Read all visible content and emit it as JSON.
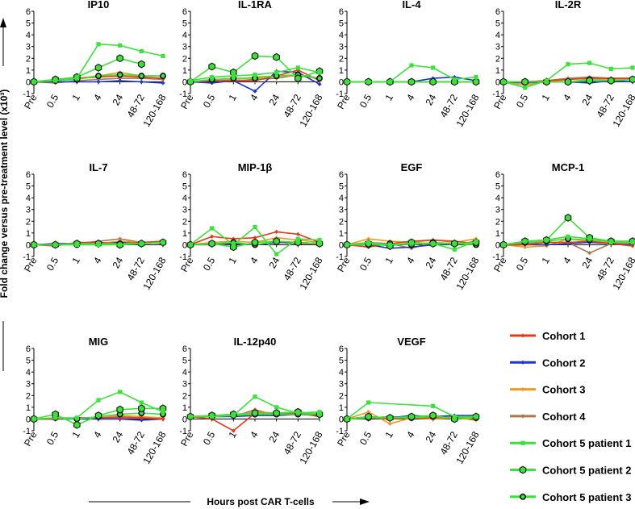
{
  "y_axis_label": "Fold change versus pre-treatment level (x10³)",
  "x_axis_label": "Hours post CAR T-cells",
  "x_categories": [
    "Pre",
    "0.5",
    "1",
    "4",
    "24",
    "48-72",
    "120-168"
  ],
  "y_ticks": [
    "-1",
    "0",
    "1",
    "2",
    "3",
    "4",
    "5",
    "6"
  ],
  "series_styles": [
    {
      "name": "Cohort 1",
      "color": "#e8391b",
      "marker": "diamond"
    },
    {
      "name": "Cohort 2",
      "color": "#1f37c9",
      "marker": "diamond"
    },
    {
      "name": "Cohort 3",
      "color": "#f3981f",
      "marker": "diamond"
    },
    {
      "name": "Cohort 4",
      "color": "#a8794f",
      "marker": "diamond"
    },
    {
      "name": "Cohort 5 patient 1",
      "color": "#3ce23a",
      "marker": "square"
    },
    {
      "name": "Cohort 5 patient 2",
      "color": "#3ce23a",
      "marker": "hexagon"
    },
    {
      "name": "Cohort 5 patient 3",
      "color": "#3ce23a",
      "marker": "circle"
    }
  ],
  "chart_data": [
    {
      "type": "line",
      "title": "IP10",
      "categories": [
        "Pre",
        "0.5",
        "1",
        "4",
        "24",
        "48-72",
        "120-168"
      ],
      "ylim": [
        -1,
        6
      ],
      "series": [
        {
          "name": "Cohort 1",
          "values": [
            0,
            0.2,
            0.3,
            0.4,
            0.5,
            0.4,
            0.3
          ]
        },
        {
          "name": "Cohort 2",
          "values": [
            0,
            0,
            0,
            0,
            0.1,
            0,
            -0.1
          ]
        },
        {
          "name": "Cohort 3",
          "values": [
            0,
            0.1,
            0.3,
            0.5,
            0.8,
            0.5,
            0.5
          ]
        },
        {
          "name": "Cohort 4",
          "values": [
            0,
            -0.1,
            0.1,
            0.2,
            0.3,
            0.3,
            0.2
          ]
        },
        {
          "name": "Cohort 5 patient 1",
          "values": [
            0,
            0.1,
            0.3,
            3.2,
            3.1,
            2.6,
            2.2
          ]
        },
        {
          "name": "Cohort 5 patient 2",
          "values": [
            0,
            0.2,
            0.4,
            1.2,
            2.0,
            1.5,
            null
          ]
        },
        {
          "name": "Cohort 5 patient 3",
          "values": [
            0,
            0.1,
            0.2,
            0.5,
            0.6,
            0.5,
            0.5
          ]
        }
      ]
    },
    {
      "type": "line",
      "title": "IL-1RA",
      "categories": [
        "Pre",
        "0.5",
        "1",
        "4",
        "24",
        "48-72",
        "120-168"
      ],
      "ylim": [
        -1,
        6
      ],
      "series": [
        {
          "name": "Cohort 1",
          "values": [
            0,
            0.1,
            0.1,
            0.1,
            0.5,
            1.0,
            0.1
          ]
        },
        {
          "name": "Cohort 2",
          "values": [
            0,
            -0.1,
            0.1,
            -0.8,
            0.9,
            0.8,
            -0.2
          ]
        },
        {
          "name": "Cohort 3",
          "values": [
            0,
            0.1,
            0.2,
            0.4,
            0.5,
            0.5,
            0.3
          ]
        },
        {
          "name": "Cohort 4",
          "values": [
            0,
            0.1,
            0.1,
            0.2,
            0.3,
            0.6,
            0.3
          ]
        },
        {
          "name": "Cohort 5 patient 1",
          "values": [
            0.1,
            0.4,
            0.5,
            0.6,
            0.8,
            1.2,
            0.8
          ]
        },
        {
          "name": "Cohort 5 patient 2",
          "values": [
            0,
            1.3,
            0.8,
            2.2,
            2.1,
            0.3,
            0.9
          ]
        },
        {
          "name": "Cohort 5 patient 3",
          "values": [
            0,
            0.2,
            0.3,
            0.3,
            0.5,
            0.6,
            0.3
          ]
        }
      ]
    },
    {
      "type": "line",
      "title": "IL-4",
      "categories": [
        "Pre",
        "0.5",
        "1",
        "4",
        "24",
        "48-72",
        "120-168"
      ],
      "ylim": [
        -1,
        6
      ],
      "series": [
        {
          "name": "Cohort 1",
          "values": [
            0,
            0,
            0,
            0,
            0,
            0,
            0
          ]
        },
        {
          "name": "Cohort 2",
          "values": [
            0,
            0,
            0,
            0,
            0.3,
            0.4,
            0.1
          ]
        },
        {
          "name": "Cohort 3",
          "values": [
            0,
            0,
            0,
            0,
            0,
            0,
            0
          ]
        },
        {
          "name": "Cohort 4",
          "values": [
            0,
            0,
            0,
            0,
            0,
            0,
            0
          ]
        },
        {
          "name": "Cohort 5 patient 1",
          "values": [
            0,
            0,
            0,
            1.4,
            1.2,
            0.2,
            0.4
          ]
        },
        {
          "name": "Cohort 5 patient 2",
          "values": [
            0,
            0,
            0,
            0,
            0,
            0,
            0
          ]
        },
        {
          "name": "Cohort 5 patient 3",
          "values": [
            0,
            0,
            0,
            0,
            0,
            0,
            0
          ]
        }
      ]
    },
    {
      "type": "line",
      "title": "IL-2R",
      "categories": [
        "Pre",
        "0.5",
        "1",
        "4",
        "24",
        "48-72",
        "120-168"
      ],
      "ylim": [
        -1,
        6
      ],
      "series": [
        {
          "name": "Cohort 1",
          "values": [
            0,
            0,
            0.1,
            0.2,
            0.3,
            0.3,
            0.3
          ]
        },
        {
          "name": "Cohort 2",
          "values": [
            0,
            -0.1,
            0,
            0,
            -0.1,
            0.1,
            0
          ]
        },
        {
          "name": "Cohort 3",
          "values": [
            0,
            -0.3,
            0,
            0.2,
            0.3,
            0.2,
            0.2
          ]
        },
        {
          "name": "Cohort 4",
          "values": [
            0,
            0,
            0.1,
            0.3,
            0.4,
            0.3,
            0.3
          ]
        },
        {
          "name": "Cohort 5 patient 1",
          "values": [
            0,
            -0.5,
            0.1,
            1.5,
            1.6,
            1.1,
            1.2
          ]
        },
        {
          "name": "Cohort 5 patient 2",
          "values": [
            0,
            0,
            0,
            0,
            0.1,
            0.1,
            0.2
          ]
        },
        {
          "name": "Cohort 5 patient 3",
          "values": [
            0,
            0,
            0,
            0,
            0.2,
            0.1,
            0.2
          ]
        }
      ]
    },
    {
      "type": "line",
      "title": "IL-7",
      "categories": [
        "Pre",
        "0.5",
        "1",
        "4",
        "24",
        "48-72",
        "120-168"
      ],
      "ylim": [
        -1,
        6
      ],
      "series": [
        {
          "name": "Cohort 1",
          "values": [
            0,
            -0.1,
            0.2,
            0.2,
            0.1,
            0.2,
            0.3
          ]
        },
        {
          "name": "Cohort 2",
          "values": [
            0,
            0.1,
            0.1,
            0.1,
            0.2,
            0.1,
            0.2
          ]
        },
        {
          "name": "Cohort 3",
          "values": [
            0,
            0.1,
            0,
            0.1,
            0.3,
            0.2,
            0.1
          ]
        },
        {
          "name": "Cohort 4",
          "values": [
            0,
            0,
            0.1,
            0.3,
            0.5,
            0.2,
            0.2
          ]
        },
        {
          "name": "Cohort 5 patient 1",
          "values": [
            0,
            0,
            0,
            0,
            0,
            0.1,
            0.2
          ]
        },
        {
          "name": "Cohort 5 patient 2",
          "values": [
            0,
            0,
            0.1,
            0.1,
            0,
            0.1,
            0.2
          ]
        },
        {
          "name": "Cohort 5 patient 3",
          "values": [
            0,
            0,
            0,
            0.1,
            0.1,
            0.1,
            0.2
          ]
        }
      ]
    },
    {
      "type": "line",
      "title": "MIP-1β",
      "categories": [
        "Pre",
        "0.5",
        "1",
        "4",
        "24",
        "48-72",
        "120-168"
      ],
      "ylim": [
        -1,
        6
      ],
      "series": [
        {
          "name": "Cohort 1",
          "values": [
            0,
            0.7,
            0.5,
            0.6,
            1.1,
            0.9,
            0.2
          ]
        },
        {
          "name": "Cohort 2",
          "values": [
            0,
            0.1,
            0.1,
            0,
            0.2,
            0.2,
            0.1
          ]
        },
        {
          "name": "Cohort 3",
          "values": [
            0,
            0.2,
            0.3,
            0.2,
            0.6,
            0.4,
            0.2
          ]
        },
        {
          "name": "Cohort 4",
          "values": [
            0,
            0,
            0.1,
            0,
            0.2,
            0.1,
            0.1
          ]
        },
        {
          "name": "Cohort 5 patient 1",
          "values": [
            0,
            1.4,
            0,
            1.5,
            -0.8,
            0.5,
            0.4
          ]
        },
        {
          "name": "Cohort 5 patient 2",
          "values": [
            0,
            0.1,
            -0.2,
            0.2,
            0.3,
            0.2,
            0.1
          ]
        },
        {
          "name": "Cohort 5 patient 3",
          "values": [
            0,
            0.1,
            0.2,
            0,
            0.3,
            0.2,
            0.1
          ]
        }
      ]
    },
    {
      "type": "line",
      "title": "EGF",
      "categories": [
        "Pre",
        "0.5",
        "1",
        "4",
        "24",
        "48-72",
        "120-168"
      ],
      "ylim": [
        -1,
        6
      ],
      "series": [
        {
          "name": "Cohort 1",
          "values": [
            0,
            -0.2,
            0.1,
            0.3,
            0.4,
            0.3,
            0.1
          ]
        },
        {
          "name": "Cohort 2",
          "values": [
            0,
            0,
            -0.3,
            -0.2,
            0,
            0.1,
            0
          ]
        },
        {
          "name": "Cohort 3",
          "values": [
            0,
            0.5,
            0.3,
            0.2,
            0.4,
            0.2,
            0.5
          ]
        },
        {
          "name": "Cohort 4",
          "values": [
            0,
            0.2,
            0.1,
            -0.3,
            0.2,
            0,
            0.3
          ]
        },
        {
          "name": "Cohort 5 patient 1",
          "values": [
            0,
            0.2,
            0,
            0.1,
            0.1,
            -0.4,
            0.3
          ]
        },
        {
          "name": "Cohort 5 patient 2",
          "values": [
            0,
            0.1,
            -0.1,
            0.2,
            0.1,
            0.1,
            0.2
          ]
        },
        {
          "name": "Cohort 5 patient 3",
          "values": [
            0,
            0,
            0.1,
            0,
            0.2,
            0.1,
            0
          ]
        }
      ]
    },
    {
      "type": "line",
      "title": "MCP-1",
      "categories": [
        "Pre",
        "0.5",
        "1",
        "4",
        "24",
        "48-72",
        "120-168"
      ],
      "ylim": [
        -1,
        6
      ],
      "series": [
        {
          "name": "Cohort 1",
          "values": [
            0,
            0,
            0.2,
            0.2,
            0.3,
            0.1,
            -0.1
          ]
        },
        {
          "name": "Cohort 2",
          "values": [
            0,
            0,
            0,
            0.1,
            0.2,
            0.1,
            0
          ]
        },
        {
          "name": "Cohort 3",
          "values": [
            0,
            -0.2,
            -0.1,
            0.5,
            0.3,
            0.2,
            0
          ]
        },
        {
          "name": "Cohort 4",
          "values": [
            0,
            0.1,
            0.2,
            0.2,
            -0.7,
            0.1,
            0.1
          ]
        },
        {
          "name": "Cohort 5 patient 1",
          "values": [
            0,
            0.3,
            0.4,
            0.7,
            0.5,
            0.2,
            0.2
          ]
        },
        {
          "name": "Cohort 5 patient 2",
          "values": [
            0,
            0.3,
            0.4,
            2.3,
            0.6,
            0.3,
            0.3
          ]
        },
        {
          "name": "Cohort 5 patient 3",
          "values": [
            0,
            0.2,
            0.3,
            0.5,
            0.4,
            0.3,
            0.3
          ]
        }
      ]
    },
    {
      "type": "line",
      "title": "MIG",
      "categories": [
        "Pre",
        "0.5",
        "1",
        "4",
        "24",
        "48-72",
        "120-168"
      ],
      "ylim": [
        -1,
        6
      ],
      "series": [
        {
          "name": "Cohort 1",
          "values": [
            0,
            0,
            0.1,
            0.1,
            0.1,
            0.1,
            0
          ]
        },
        {
          "name": "Cohort 2",
          "values": [
            0,
            0,
            0,
            0,
            0,
            -0.1,
            0
          ]
        },
        {
          "name": "Cohort 3",
          "values": [
            0,
            0.1,
            0,
            0.2,
            0.3,
            0.2,
            0.1
          ]
        },
        {
          "name": "Cohort 4",
          "values": [
            0,
            0,
            0.1,
            0.1,
            0.2,
            0.1,
            0.1
          ]
        },
        {
          "name": "Cohort 5 patient 1",
          "values": [
            0,
            0.1,
            0.1,
            1.6,
            2.3,
            1.4,
            0.6
          ]
        },
        {
          "name": "Cohort 5 patient 2",
          "values": [
            0,
            0.4,
            -0.5,
            0.3,
            0.8,
            0.9,
            0.9
          ]
        },
        {
          "name": "Cohort 5 patient 3",
          "values": [
            0,
            0.1,
            0,
            0.2,
            0.4,
            0.5,
            0.4
          ]
        }
      ]
    },
    {
      "type": "line",
      "title": "IL-12p40",
      "categories": [
        "Pre",
        "0.5",
        "1",
        "4",
        "24",
        "48-72",
        "120-168"
      ],
      "ylim": [
        -1,
        6
      ],
      "series": [
        {
          "name": "Cohort 1",
          "values": [
            0.2,
            0,
            -1.0,
            0.5,
            0.5,
            0.5,
            0.2
          ]
        },
        {
          "name": "Cohort 2",
          "values": [
            0.2,
            0.2,
            0.2,
            0.3,
            0.3,
            0.4,
            0.3
          ]
        },
        {
          "name": "Cohort 3",
          "values": [
            0.2,
            0.3,
            0.3,
            0.6,
            0.5,
            0.5,
            0.4
          ]
        },
        {
          "name": "Cohort 4",
          "values": [
            0.2,
            0.3,
            0.2,
            0.8,
            0.3,
            0.4,
            0.3
          ]
        },
        {
          "name": "Cohort 5 patient 1",
          "values": [
            0.2,
            0.2,
            0.3,
            1.9,
            1.0,
            0.5,
            0.6
          ]
        },
        {
          "name": "Cohort 5 patient 2",
          "values": [
            0.2,
            0.3,
            0.4,
            0.5,
            0.5,
            0.6,
            0.4
          ]
        },
        {
          "name": "Cohort 5 patient 3",
          "values": [
            0.2,
            0.2,
            0.3,
            0.4,
            0.4,
            0.4,
            0.4
          ]
        }
      ]
    },
    {
      "type": "line",
      "title": "VEGF",
      "categories": [
        "Pre",
        "0.5",
        "1",
        "4",
        "24",
        "48-72",
        "120-168"
      ],
      "ylim": [
        -1,
        6
      ],
      "series": [
        {
          "name": "Cohort 1",
          "values": [
            0,
            0.1,
            0,
            0.1,
            0.1,
            0.2,
            0.1
          ]
        },
        {
          "name": "Cohort 2",
          "values": [
            0,
            0.2,
            0.1,
            0.3,
            0.2,
            0.3,
            0.3
          ]
        },
        {
          "name": "Cohort 3",
          "values": [
            0,
            0.6,
            -0.4,
            0.1,
            0,
            0.1,
            -0.1
          ]
        },
        {
          "name": "Cohort 4",
          "values": [
            0,
            0.1,
            0.2,
            0.1,
            0.3,
            0.1,
            0.2
          ]
        },
        {
          "name": "Cohort 5 patient 1",
          "values": [
            0,
            1.4,
            null,
            null,
            1.1,
            0.2,
            0.2
          ]
        },
        {
          "name": "Cohort 5 patient 2",
          "values": [
            0,
            0.2,
            0.1,
            0.2,
            0.3,
            0,
            0.2
          ]
        },
        {
          "name": "Cohort 5 patient 3",
          "values": [
            0,
            0.1,
            0.1,
            0.1,
            0.2,
            0.1,
            0.1
          ]
        }
      ]
    }
  ]
}
